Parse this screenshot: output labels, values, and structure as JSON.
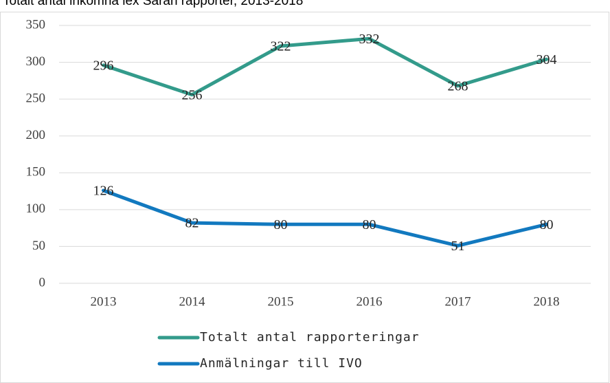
{
  "chart_data": {
    "type": "line",
    "title": "Totalt antal inkomna lex Sarah rapporter, 2013-2018",
    "categories": [
      "2013",
      "2014",
      "2015",
      "2016",
      "2017",
      "2018"
    ],
    "series": [
      {
        "name": "Totalt antal rapporteringar",
        "color": "#339b8b",
        "values": [
          296,
          256,
          322,
          332,
          268,
          304
        ]
      },
      {
        "name": "Anmälningar till IVO",
        "color": "#1279bf",
        "values": [
          126,
          82,
          80,
          80,
          51,
          80
        ]
      }
    ],
    "ylim": [
      0,
      350
    ],
    "yticks": [
      0,
      50,
      100,
      150,
      200,
      250,
      300,
      350
    ],
    "grid": true,
    "legend": "bottom"
  }
}
